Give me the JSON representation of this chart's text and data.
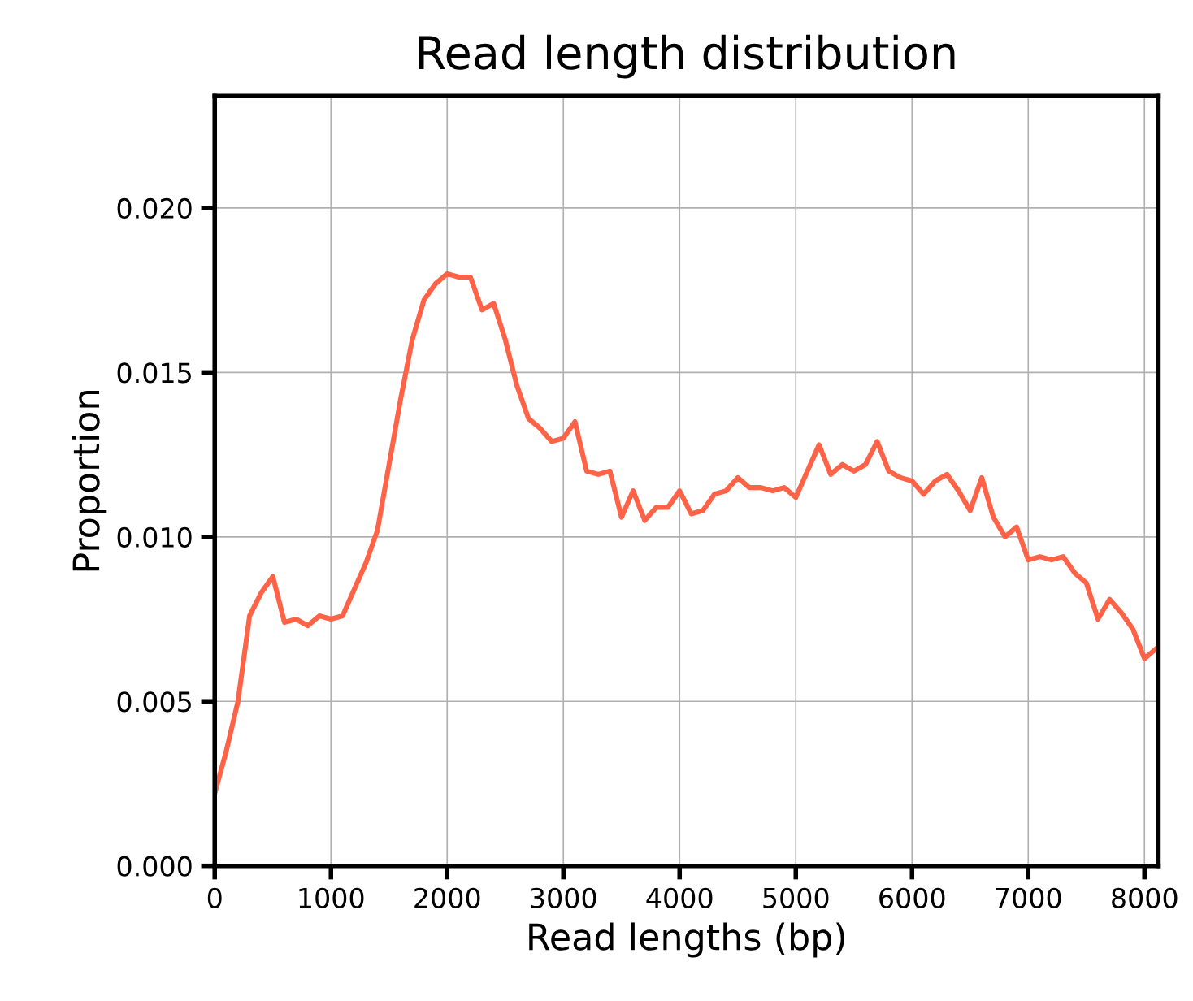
{
  "chart_data": {
    "type": "line",
    "title": "Read length distribution",
    "xlabel": "Read lengths (bp)",
    "ylabel": "Proportion",
    "x": [
      0,
      100,
      200,
      300,
      400,
      500,
      600,
      700,
      800,
      900,
      1000,
      1100,
      1200,
      1300,
      1400,
      1500,
      1600,
      1700,
      1800,
      1900,
      2000,
      2100,
      2200,
      2300,
      2400,
      2500,
      2600,
      2700,
      2800,
      2900,
      3000,
      3100,
      3200,
      3300,
      3400,
      3500,
      3600,
      3700,
      3800,
      3900,
      4000,
      4100,
      4200,
      4300,
      4400,
      4500,
      4600,
      4700,
      4800,
      4900,
      5000,
      5100,
      5200,
      5300,
      5400,
      5500,
      5600,
      5700,
      5800,
      5900,
      6000,
      6100,
      6200,
      6300,
      6400,
      6500,
      6600,
      6700,
      6800,
      6900,
      7000,
      7100,
      7200,
      7300,
      7400,
      7500,
      7600,
      7700,
      7800,
      7900,
      8000,
      8100
    ],
    "series": [
      {
        "color": "#ff6347",
        "values": [
          0.0022,
          0.0035,
          0.005,
          0.0076,
          0.0083,
          0.0088,
          0.0074,
          0.0075,
          0.0073,
          0.0076,
          0.0075,
          0.0076,
          0.0084,
          0.0092,
          0.0102,
          0.0122,
          0.0142,
          0.016,
          0.0172,
          0.0177,
          0.018,
          0.0179,
          0.0179,
          0.0169,
          0.0171,
          0.016,
          0.0146,
          0.0136,
          0.0133,
          0.0129,
          0.013,
          0.0135,
          0.012,
          0.0119,
          0.012,
          0.0106,
          0.0114,
          0.0105,
          0.0109,
          0.0109,
          0.0114,
          0.0107,
          0.0108,
          0.0113,
          0.0114,
          0.0118,
          0.0115,
          0.0115,
          0.0114,
          0.0115,
          0.0112,
          0.012,
          0.0128,
          0.0119,
          0.0122,
          0.012,
          0.0122,
          0.0129,
          0.012,
          0.0118,
          0.0117,
          0.0113,
          0.0117,
          0.0119,
          0.0114,
          0.0108,
          0.0118,
          0.0106,
          0.01,
          0.0103,
          0.0093,
          0.0094,
          0.0093,
          0.0094,
          0.0089,
          0.0086,
          0.0075,
          0.0081,
          0.0077,
          0.0072,
          0.0063,
          0.0066
        ]
      }
    ],
    "xlim": [
      0,
      8120
    ],
    "ylim": [
      0,
      0.0234
    ],
    "xticks": [
      0,
      1000,
      2000,
      3000,
      4000,
      5000,
      6000,
      7000,
      8000
    ],
    "yticks": [
      {
        "value": 0,
        "label": "0.000"
      },
      {
        "value": 0.005,
        "label": "0.005"
      },
      {
        "value": 0.01,
        "label": "0.010"
      },
      {
        "value": 0.015,
        "label": "0.015"
      },
      {
        "value": 0.02,
        "label": "0.020"
      }
    ],
    "grid": true,
    "line_style": "solid"
  }
}
